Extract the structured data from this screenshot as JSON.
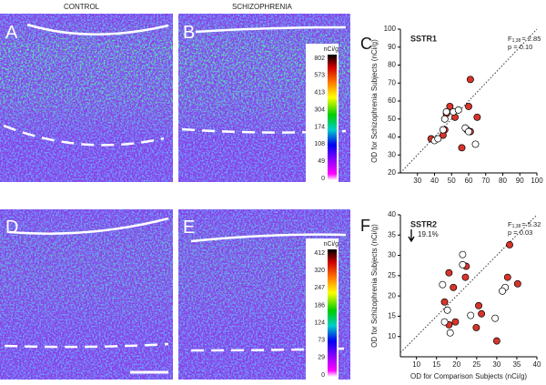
{
  "columns": [
    "CONTROL",
    "SCHIZOPHRENIA"
  ],
  "panels": [
    "A",
    "B",
    "C",
    "D",
    "E",
    "F"
  ],
  "colorbars": [
    {
      "unit": "nCi/g",
      "ticks": [
        802,
        573,
        413,
        304,
        174,
        108,
        49,
        0
      ]
    },
    {
      "unit": "nCi/g",
      "ticks": [
        412,
        320,
        247,
        186,
        124,
        73,
        29,
        0
      ]
    }
  ],
  "chart_data": [
    {
      "type": "scatter",
      "title": "SSTR1",
      "ylabel": "OD for Schizophrenia Subjects (nCi/g)",
      "stat": {
        "f": "F",
        "sub": "1,38",
        "value": "= 2.85",
        "p": "p = 0.10"
      },
      "xlim": [
        20,
        100
      ],
      "ylim": [
        20,
        100
      ],
      "xticks": [
        30,
        40,
        50,
        60,
        70,
        80,
        90,
        100
      ],
      "yticks": [
        20,
        30,
        40,
        50,
        60,
        70,
        80,
        90,
        100
      ],
      "series": [
        {
          "color": "#d9342b",
          "x": [
            38,
            46,
            47,
            49,
            52,
            56,
            59,
            61,
            60,
            61,
            65,
            45
          ],
          "values": [
            39,
            44,
            53,
            57,
            51,
            34,
            44,
            43,
            57,
            72,
            51,
            41
          ]
        },
        {
          "color": "#ffffff",
          "x": [
            40,
            42,
            46,
            45,
            47,
            51,
            54,
            58,
            60,
            64
          ],
          "values": [
            38,
            39,
            50,
            44,
            54,
            54,
            55,
            45,
            43,
            36
          ]
        }
      ]
    },
    {
      "type": "scatter",
      "title": "SSTR2",
      "ylabel": "OD for Schizophrenia Subjects (nCi/g)",
      "xlabel": "OD for Comparison Subjects (nCi/g)",
      "annotation": "19.1%",
      "stat": {
        "f": "F",
        "sub": "1,38",
        "value": "= 5.32",
        "p": "p = 0.03"
      },
      "xlim": [
        6,
        40
      ],
      "ylim": [
        5,
        40
      ],
      "xticks": [
        10,
        15,
        20,
        25,
        30,
        35,
        40
      ],
      "yticks": [
        10,
        15,
        20,
        25,
        30,
        35,
        40
      ],
      "series": [
        {
          "color": "#d9342b",
          "x": [
            18.1,
            22.4,
            22.2,
            17,
            18.1,
            19.7,
            19.2,
            25.5,
            26.2,
            24.9,
            33.2,
            32.7,
            35.2,
            30
          ],
          "values": [
            25.7,
            27.3,
            24.6,
            18.5,
            12.9,
            13.6,
            22.1,
            17.6,
            15.6,
            12.2,
            32.6,
            24.6,
            23,
            8.9
          ]
        },
        {
          "color": "#ffffff",
          "x": [
            21.5,
            21.5,
            16.5,
            17.7,
            17,
            18.4,
            23.5,
            32.1,
            31.4,
            29.6
          ],
          "values": [
            30.2,
            27.7,
            22.8,
            16.5,
            13.6,
            10.9,
            15.2,
            22.1,
            21.2,
            14.5
          ]
        }
      ]
    }
  ]
}
